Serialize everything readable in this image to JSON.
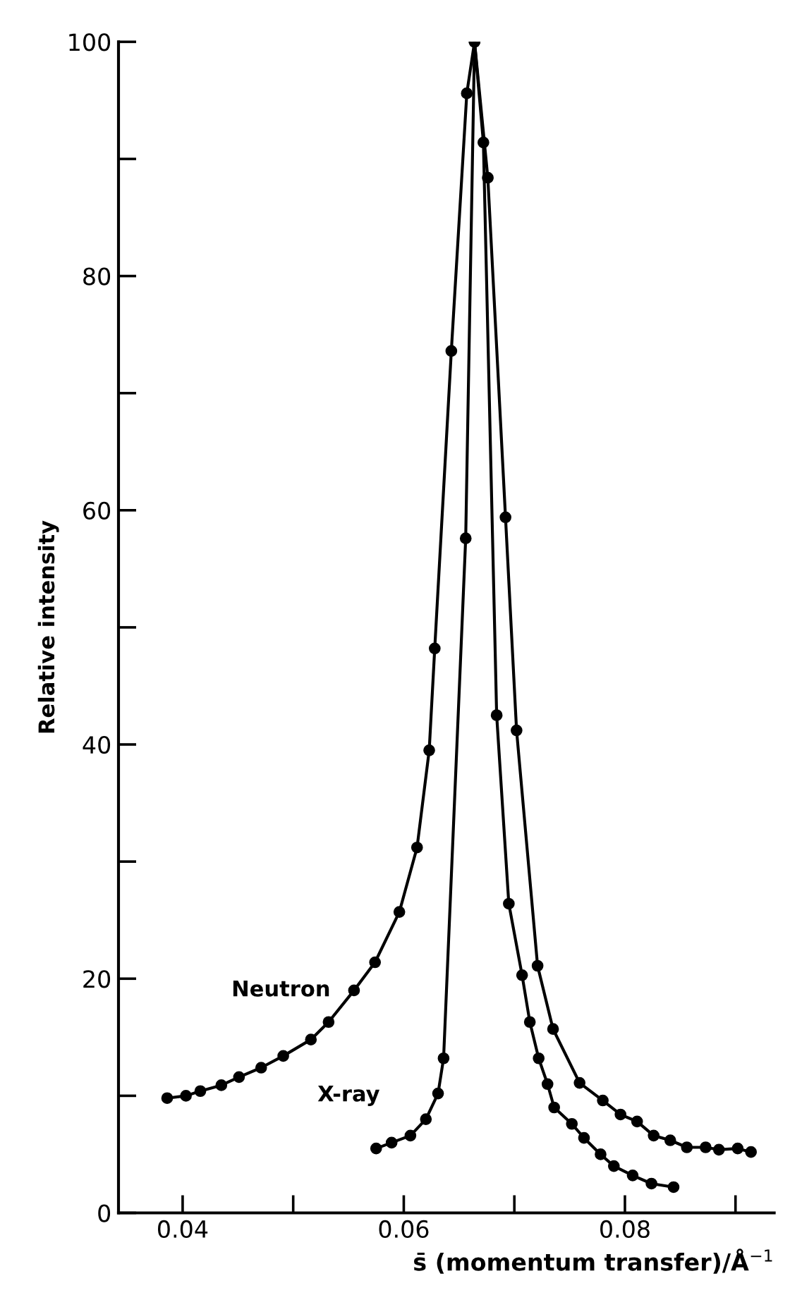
{
  "chart_data": {
    "type": "line",
    "xlabel": "s̄ (momentum transfer)/Å$^{−1}$",
    "ylabel": "Relative intensity",
    "xlim": [
      0.0342,
      0.0935
    ],
    "ylim": [
      0,
      100
    ],
    "xticks": [
      0.04,
      {
        "value": 0.05,
        "label": null
      },
      0.06,
      {
        "value": 0.07,
        "label": null
      },
      0.08,
      {
        "value": 0.09,
        "label": null
      }
    ],
    "yticks": [
      0,
      {
        "value": 10,
        "label": null
      },
      20,
      {
        "value": 30,
        "label": null
      },
      40,
      {
        "value": 50,
        "label": null
      },
      60,
      {
        "value": 70,
        "label": null
      },
      80,
      {
        "value": 90,
        "label": null
      },
      100
    ],
    "marker": "circle",
    "line_style": "solid",
    "grid": false,
    "legend": false,
    "series": [
      {
        "name": "Neutron",
        "color": "#000000",
        "x": [
          0.0386,
          0.0403,
          0.0416,
          0.0435,
          0.0451,
          0.0471,
          0.0491,
          0.0516,
          0.0532,
          0.0555,
          0.0574,
          0.0596,
          0.0612,
          0.0623,
          0.0628,
          0.0643,
          0.0657,
          0.0664,
          0.0676,
          0.0692,
          0.0702,
          0.0721,
          0.0735,
          0.0759,
          0.078,
          0.0796,
          0.0811,
          0.0826,
          0.0841,
          0.0856,
          0.0873,
          0.0885,
          0.0902,
          0.0914
        ],
        "values": [
          9.8,
          10.0,
          10.4,
          10.9,
          11.6,
          12.4,
          13.4,
          14.8,
          16.3,
          19.0,
          21.4,
          25.7,
          31.2,
          39.5,
          48.2,
          73.6,
          95.6,
          100,
          88.4,
          59.4,
          41.2,
          21.1,
          15.7,
          11.1,
          9.6,
          8.4,
          7.8,
          6.6,
          6.2,
          5.6,
          5.6,
          5.4,
          5.5,
          5.2
        ]
      },
      {
        "name": "X-ray",
        "color": "#000000",
        "x": [
          0.0575,
          0.0589,
          0.0606,
          0.062,
          0.0631,
          0.0636,
          0.0656,
          0.0664,
          0.0672,
          0.0684,
          0.0695,
          0.0707,
          0.0714,
          0.0722,
          0.073,
          0.0736,
          0.0752,
          0.0763,
          0.0778,
          0.079,
          0.0807,
          0.0824,
          0.0844
        ],
        "values": [
          5.5,
          6.0,
          6.6,
          8.0,
          10.2,
          13.2,
          57.6,
          100,
          91.4,
          42.5,
          26.4,
          20.3,
          16.3,
          13.2,
          11.0,
          9.0,
          7.6,
          6.4,
          5.0,
          4.0,
          3.2,
          2.5,
          2.2
        ]
      }
    ]
  }
}
